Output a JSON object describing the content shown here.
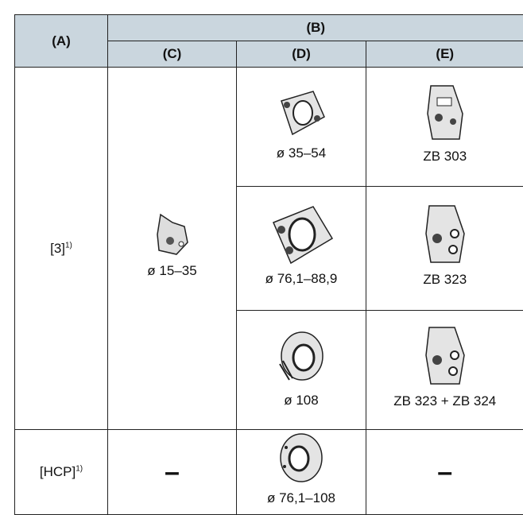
{
  "table": {
    "header": {
      "first": "(A)",
      "group": "(B)",
      "columns": [
        "(C)",
        "(D)",
        "(E)"
      ]
    },
    "rows": [
      {
        "label": "[3]",
        "note": "1)",
        "c": "ø 15–35",
        "d": [
          "ø 35–54",
          "ø 76,1–88,9",
          "ø 108"
        ],
        "e": [
          "ZB 303",
          "ZB 323",
          "ZB 323 + ZB 324"
        ]
      },
      {
        "label": "[HCP]",
        "note": "1)",
        "c": "–",
        "d": [
          "ø 76,1–108"
        ],
        "e": [
          "–"
        ]
      }
    ]
  }
}
